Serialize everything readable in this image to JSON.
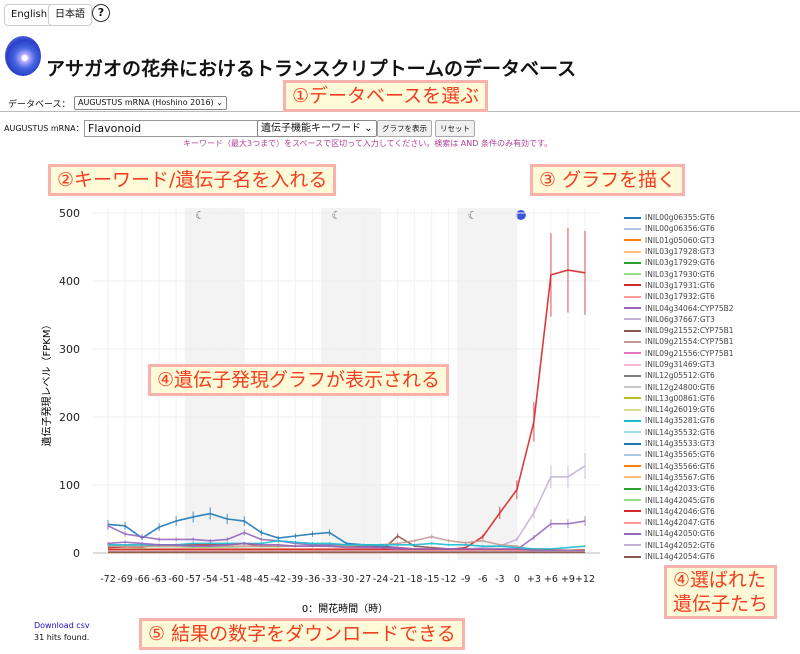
{
  "lang_buttons": [
    "English",
    "日本語"
  ],
  "help_icon": "question-circle-icon",
  "title": "アサガオの花弁におけるトランスクリプトームのデータベース",
  "database": {
    "label": "データベース：",
    "value": "AUGUSTUS mRNA (Hoshino 2016)"
  },
  "search": {
    "label": "AUGUSTUS mRNA：",
    "value": "Flavonoid",
    "type": "遺伝子機能キーワード",
    "show_label": "グラフを表示",
    "reset_label": "リセット",
    "hint": "キーワード（最大3つまで）をスペースで区切って入力してください。検索は AND 条件のみ有効です。"
  },
  "annotations": [
    "①データベースを選ぶ",
    "②キーワード/遺伝子名を入れる",
    "③ グラフを描く",
    "④遺伝子発現グラフが表示される",
    "④選ばれた",
    "遺伝子たち",
    "⑤ 結果の数字をダウンロードできる"
  ],
  "footer": {
    "download": "Download csv",
    "hits": "31 hits found."
  },
  "chart_data": {
    "type": "line",
    "xlabel": "0：開花時間（時）",
    "ylabel": "遺伝子発現レベル（FPKM）",
    "ylim": [
      0,
      500
    ],
    "yticks": [
      0,
      100,
      200,
      300,
      400,
      500
    ],
    "categories": [
      "-72",
      "-69",
      "-66",
      "-63",
      "-60",
      "-57",
      "-54",
      "-51",
      "-48",
      "-45",
      "-42",
      "-39",
      "-36",
      "-33",
      "-30",
      "-27",
      "-24",
      "-21",
      "-18",
      "-15",
      "-12",
      "-9",
      "-6",
      "-3",
      "0",
      "+3",
      "+6",
      "+9",
      "+12"
    ],
    "night_periods": [
      [
        "-57",
        "-48"
      ],
      [
        "-33",
        "-24"
      ],
      [
        "-9",
        "0"
      ]
    ],
    "night_icon": "moon-icon",
    "flower_icon": "morning-glory-icon",
    "grid": true,
    "legend": "right",
    "error_bars": true,
    "series": [
      {
        "name": "INIL00g06355:GT6",
        "color": "#1f77b4",
        "values": [
          42,
          40,
          22,
          38,
          47,
          53,
          58,
          50,
          47,
          30,
          22,
          25,
          28,
          30,
          14,
          12,
          10,
          8,
          2,
          2,
          2,
          2,
          2,
          2,
          2,
          1,
          1,
          1,
          1
        ]
      },
      {
        "name": "INIL00g06356:GT6",
        "color": "#aec7e8",
        "values": [
          3,
          3,
          3,
          3,
          3,
          3,
          3,
          3,
          3,
          3,
          3,
          3,
          3,
          3,
          3,
          3,
          3,
          3,
          3,
          3,
          3,
          3,
          3,
          3,
          3,
          3,
          3,
          3,
          3
        ]
      },
      {
        "name": "INIL01g05060:GT3",
        "color": "#ff7f0e",
        "values": [
          1,
          1,
          1,
          1,
          1,
          1,
          1,
          1,
          1,
          1,
          1,
          1,
          1,
          1,
          1,
          1,
          1,
          1,
          1,
          1,
          1,
          1,
          1,
          2,
          3,
          6,
          5,
          4,
          5
        ]
      },
      {
        "name": "INIL03g17928:GT3",
        "color": "#ffbb78",
        "values": [
          2,
          2,
          2,
          2,
          2,
          2,
          2,
          2,
          2,
          2,
          2,
          2,
          2,
          2,
          2,
          2,
          2,
          2,
          2,
          2,
          2,
          2,
          2,
          2,
          2,
          3,
          3,
          3,
          3
        ]
      },
      {
        "name": "INIL03g17929:GT6",
        "color": "#2ca02c",
        "values": [
          4,
          4,
          5,
          5,
          5,
          5,
          5,
          5,
          5,
          4,
          4,
          4,
          4,
          4,
          4,
          4,
          4,
          4,
          3,
          3,
          3,
          3,
          3,
          2,
          2,
          2,
          2,
          2,
          2
        ]
      },
      {
        "name": "INIL03g17930:GT6",
        "color": "#98df8a",
        "values": [
          6,
          6,
          7,
          7,
          7,
          8,
          8,
          8,
          7,
          7,
          7,
          6,
          6,
          6,
          6,
          6,
          5,
          5,
          5,
          5,
          4,
          4,
          4,
          3,
          3,
          3,
          3,
          3,
          3
        ]
      },
      {
        "name": "INIL03g17931:GT6",
        "color": "#d62728",
        "values": [
          8,
          9,
          9,
          12,
          12,
          12,
          12,
          12,
          14,
          10,
          10,
          10,
          10,
          10,
          10,
          10,
          8,
          8,
          6,
          5,
          5,
          8,
          24,
          59,
          93,
          193,
          409,
          416,
          412
        ]
      },
      {
        "name": "INIL03g17932:GT6",
        "color": "#ff9896",
        "values": [
          5,
          5,
          5,
          6,
          6,
          6,
          6,
          6,
          6,
          6,
          6,
          6,
          6,
          6,
          6,
          6,
          6,
          6,
          6,
          6,
          6,
          5,
          5,
          5,
          5,
          4,
          4,
          4,
          4
        ]
      },
      {
        "name": "INIL04g34064:CYP75B2",
        "color": "#9467bd",
        "values": [
          40,
          28,
          24,
          20,
          20,
          20,
          18,
          20,
          30,
          20,
          18,
          14,
          12,
          12,
          12,
          10,
          8,
          8,
          4,
          4,
          4,
          4,
          4,
          5,
          5,
          23,
          43,
          43,
          47
        ]
      },
      {
        "name": "INIL06g37667:GT3",
        "color": "#c5b0d5",
        "values": [
          3,
          3,
          3,
          3,
          3,
          3,
          3,
          3,
          3,
          3,
          3,
          3,
          3,
          3,
          3,
          3,
          3,
          3,
          3,
          3,
          3,
          5,
          8,
          10,
          20,
          59,
          112,
          112,
          128
        ]
      },
      {
        "name": "INIL09g21552:CYP75B1",
        "color": "#8c564b",
        "values": [
          2,
          2,
          2,
          2,
          2,
          2,
          2,
          2,
          2,
          2,
          2,
          2,
          2,
          2,
          2,
          2,
          2,
          25,
          10,
          8,
          6,
          4,
          3,
          2,
          2,
          1,
          1,
          1,
          1
        ]
      },
      {
        "name": "INIL09g21554:CYP75B1",
        "color": "#c49c94",
        "values": [
          10,
          10,
          10,
          10,
          10,
          10,
          10,
          10,
          10,
          10,
          10,
          10,
          10,
          10,
          10,
          12,
          12,
          14,
          18,
          24,
          18,
          15,
          18,
          12,
          10,
          4,
          3,
          3,
          3
        ]
      },
      {
        "name": "INIL09g21556:CYP75B1",
        "color": "#e377c2",
        "values": [
          1,
          1,
          1,
          1,
          1,
          1,
          1,
          1,
          1,
          1,
          1,
          1,
          1,
          1,
          1,
          1,
          1,
          1,
          1,
          1,
          1,
          1,
          1,
          1,
          1,
          1,
          1,
          1,
          1
        ]
      },
      {
        "name": "INIL09g31469:GT3",
        "color": "#f7b6d2",
        "values": [
          2,
          2,
          2,
          2,
          2,
          2,
          2,
          2,
          2,
          2,
          2,
          2,
          2,
          2,
          2,
          2,
          2,
          2,
          2,
          2,
          2,
          2,
          2,
          2,
          2,
          2,
          2,
          2,
          2
        ]
      },
      {
        "name": "INIL12g05512:GT6",
        "color": "#7f7f7f",
        "values": [
          1,
          1,
          1,
          1,
          1,
          1,
          1,
          1,
          1,
          1,
          1,
          1,
          1,
          1,
          1,
          1,
          1,
          1,
          1,
          1,
          1,
          1,
          1,
          1,
          1,
          1,
          1,
          1,
          1
        ]
      },
      {
        "name": "INIL12g24800:GT6",
        "color": "#c7c7c7",
        "values": [
          2,
          2,
          2,
          2,
          2,
          2,
          2,
          2,
          2,
          2,
          2,
          2,
          2,
          2,
          2,
          2,
          2,
          2,
          2,
          2,
          2,
          2,
          2,
          2,
          2,
          2,
          2,
          2,
          2
        ]
      },
      {
        "name": "INIL13g00861:GT6",
        "color": "#bcbd22",
        "values": [
          1,
          1,
          1,
          1,
          1,
          1,
          1,
          1,
          1,
          1,
          1,
          1,
          1,
          1,
          1,
          1,
          1,
          1,
          1,
          1,
          1,
          1,
          1,
          1,
          1,
          1,
          1,
          1,
          1
        ]
      },
      {
        "name": "INIL14g26019:GT6",
        "color": "#dbdb8d",
        "values": [
          1,
          1,
          1,
          1,
          1,
          1,
          1,
          1,
          1,
          1,
          1,
          1,
          1,
          1,
          1,
          1,
          1,
          1,
          1,
          1,
          1,
          1,
          1,
          1,
          1,
          1,
          1,
          1,
          1
        ]
      },
      {
        "name": "INIL14g35281:GT6",
        "color": "#17becf",
        "values": [
          12,
          12,
          12,
          12,
          12,
          14,
          14,
          14,
          14,
          14,
          18,
          16,
          14,
          14,
          12,
          12,
          12,
          12,
          12,
          14,
          12,
          12,
          10,
          10,
          8,
          6,
          6,
          8,
          10
        ]
      },
      {
        "name": "INIL14g35532:GT6",
        "color": "#9edae5",
        "values": [
          3,
          3,
          3,
          3,
          3,
          3,
          3,
          3,
          3,
          3,
          3,
          3,
          3,
          3,
          3,
          3,
          3,
          3,
          3,
          3,
          3,
          3,
          3,
          3,
          3,
          3,
          3,
          3,
          3
        ]
      },
      {
        "name": "INIL14g35533:GT3",
        "color": "#1f77b4",
        "values": [
          2,
          2,
          2,
          2,
          2,
          2,
          2,
          2,
          2,
          2,
          2,
          2,
          2,
          2,
          2,
          2,
          2,
          2,
          2,
          2,
          2,
          2,
          2,
          2,
          2,
          2,
          2,
          2,
          2
        ]
      },
      {
        "name": "INIL14g35565:GT6",
        "color": "#aec7e8",
        "values": [
          1,
          1,
          1,
          1,
          1,
          1,
          1,
          1,
          1,
          1,
          1,
          1,
          1,
          1,
          1,
          1,
          1,
          1,
          1,
          1,
          1,
          1,
          1,
          1,
          1,
          1,
          1,
          1,
          1
        ]
      },
      {
        "name": "INIL14g35566:GT6",
        "color": "#ff7f0e",
        "values": [
          1,
          1,
          1,
          1,
          1,
          1,
          1,
          1,
          1,
          1,
          1,
          1,
          1,
          1,
          1,
          1,
          1,
          1,
          1,
          1,
          1,
          1,
          1,
          2,
          2,
          4,
          4,
          3,
          4
        ]
      },
      {
        "name": "INIL14g35567:GT6",
        "color": "#ffbb78",
        "values": [
          1,
          1,
          1,
          1,
          1,
          1,
          1,
          1,
          1,
          1,
          1,
          1,
          1,
          1,
          1,
          1,
          1,
          1,
          1,
          1,
          1,
          1,
          1,
          1,
          1,
          2,
          2,
          2,
          2
        ]
      },
      {
        "name": "INIL14g42033:GT6",
        "color": "#2ca02c",
        "values": [
          2,
          2,
          2,
          2,
          2,
          2,
          2,
          2,
          2,
          2,
          2,
          2,
          2,
          2,
          2,
          2,
          2,
          2,
          2,
          2,
          2,
          2,
          2,
          2,
          2,
          2,
          2,
          2,
          2
        ]
      },
      {
        "name": "INIL14g42045:GT6",
        "color": "#98df8a",
        "values": [
          4,
          4,
          4,
          4,
          4,
          4,
          4,
          4,
          4,
          4,
          4,
          4,
          4,
          4,
          4,
          4,
          4,
          4,
          4,
          4,
          4,
          4,
          4,
          4,
          4,
          3,
          3,
          3,
          3
        ]
      },
      {
        "name": "INIL14g42046:GT6",
        "color": "#d62728",
        "values": [
          5,
          5,
          5,
          5,
          5,
          5,
          5,
          5,
          5,
          5,
          5,
          5,
          5,
          5,
          5,
          5,
          5,
          5,
          5,
          5,
          5,
          5,
          5,
          5,
          5,
          4,
          4,
          4,
          4
        ]
      },
      {
        "name": "INIL14g42047:GT6",
        "color": "#ff9896",
        "values": [
          3,
          3,
          3,
          3,
          3,
          3,
          3,
          3,
          3,
          3,
          3,
          3,
          3,
          3,
          3,
          3,
          3,
          3,
          3,
          3,
          3,
          3,
          3,
          3,
          3,
          3,
          3,
          3,
          3
        ]
      },
      {
        "name": "INIL14g42050:GT6",
        "color": "#9467bd",
        "values": [
          14,
          16,
          14,
          12,
          12,
          10,
          10,
          12,
          14,
          12,
          12,
          10,
          10,
          10,
          8,
          8,
          8,
          6,
          6,
          6,
          6,
          6,
          6,
          6,
          6,
          4,
          4,
          4,
          4
        ]
      },
      {
        "name": "INIL14g42052:GT6",
        "color": "#c5b0d5",
        "values": [
          2,
          2,
          2,
          2,
          2,
          2,
          2,
          2,
          2,
          2,
          2,
          2,
          2,
          2,
          2,
          2,
          2,
          2,
          2,
          2,
          2,
          2,
          2,
          2,
          2,
          2,
          2,
          2,
          2
        ]
      },
      {
        "name": "INIL14g42054:GT6",
        "color": "#8c564b",
        "values": [
          1,
          1,
          1,
          1,
          1,
          1,
          1,
          1,
          1,
          1,
          1,
          1,
          1,
          1,
          1,
          1,
          1,
          1,
          1,
          1,
          1,
          1,
          1,
          1,
          1,
          1,
          1,
          1,
          1
        ]
      }
    ]
  }
}
